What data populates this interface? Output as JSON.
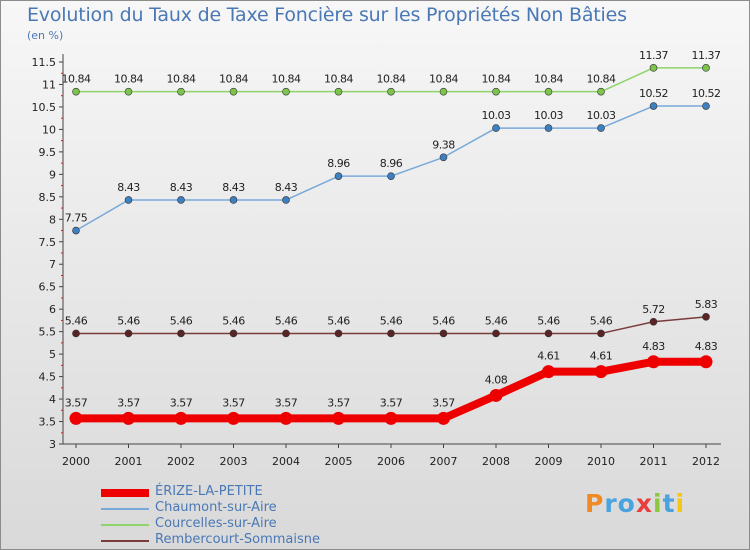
{
  "page": {
    "title": "Evolution du Taux de Taxe Foncière sur les Propriétés Non Bâties",
    "unit": "(en %)"
  },
  "logo": {
    "text": "Proxiti",
    "colors": [
      "#f08a24",
      "#4aa3df",
      "#4aa3df",
      "#e83e3e",
      "#8dc63f",
      "#4aa3df",
      "#f5c518"
    ]
  },
  "chart_data": {
    "type": "line",
    "title": "Evolution du Taux de Taxe Foncière sur les Propriétés Non Bâties",
    "ylabel": "(en %)",
    "xlabel": "",
    "x": [
      "2000",
      "2001",
      "2002",
      "2003",
      "2004",
      "2005",
      "2006",
      "2007",
      "2008",
      "2009",
      "2010",
      "2011",
      "2012"
    ],
    "ylim": [
      3,
      11.5
    ],
    "yticks": [
      "3",
      "3.5",
      "4",
      "4.5",
      "5",
      "5.5",
      "6",
      "6.5",
      "7",
      "7.5",
      "8",
      "8.5",
      "9",
      "9.5",
      "10",
      "10.5",
      "11",
      "11.5"
    ],
    "grid": false,
    "legend_position": "bottom-left",
    "series": [
      {
        "name": "ÉRIZE-LA-PETITE",
        "color": "#ee0000",
        "point_color": "#ee0000",
        "width": 8,
        "values": [
          3.57,
          3.57,
          3.57,
          3.57,
          3.57,
          3.57,
          3.57,
          3.57,
          4.08,
          4.61,
          4.61,
          4.83,
          4.83
        ],
        "labels": [
          "3.57",
          "3.57",
          "3.57",
          "3.57",
          "3.57",
          "3.57",
          "3.57",
          "3.57",
          "4.08",
          "4.61",
          "4.61",
          "4.83",
          "4.83"
        ]
      },
      {
        "name": "Chaumont-sur-Aire",
        "color": "#79a9d9",
        "point_color": "#3d7fc0",
        "width": 1.5,
        "values": [
          7.75,
          8.43,
          8.43,
          8.43,
          8.43,
          8.96,
          8.96,
          9.38,
          10.03,
          10.03,
          10.03,
          10.52,
          10.52
        ],
        "labels": [
          "7.75",
          "8.43",
          "8.43",
          "8.43",
          "8.43",
          "8.96",
          "8.96",
          "9.38",
          "10.03",
          "10.03",
          "10.03",
          "10.52",
          "10.52"
        ]
      },
      {
        "name": "Courcelles-sur-Aire",
        "color": "#8fd46a",
        "point_color": "#7cc44c",
        "width": 1.5,
        "values": [
          10.84,
          10.84,
          10.84,
          10.84,
          10.84,
          10.84,
          10.84,
          10.84,
          10.84,
          10.84,
          10.84,
          11.37,
          11.37
        ],
        "labels": [
          "10.84",
          "10.84",
          "10.84",
          "10.84",
          "10.84",
          "10.84",
          "10.84",
          "10.84",
          "10.84",
          "10.84",
          "10.84",
          "11.37",
          "11.37"
        ]
      },
      {
        "name": "Rembercourt-Sommaisne",
        "color": "#7a3b3b",
        "point_color": "#5a2424",
        "width": 1.5,
        "values": [
          5.46,
          5.46,
          5.46,
          5.46,
          5.46,
          5.46,
          5.46,
          5.46,
          5.46,
          5.46,
          5.46,
          5.72,
          5.83
        ],
        "labels": [
          "5.46",
          "5.46",
          "5.46",
          "5.46",
          "5.46",
          "5.46",
          "5.46",
          "5.46",
          "5.46",
          "5.46",
          "5.46",
          "5.72",
          "5.83"
        ]
      }
    ]
  }
}
